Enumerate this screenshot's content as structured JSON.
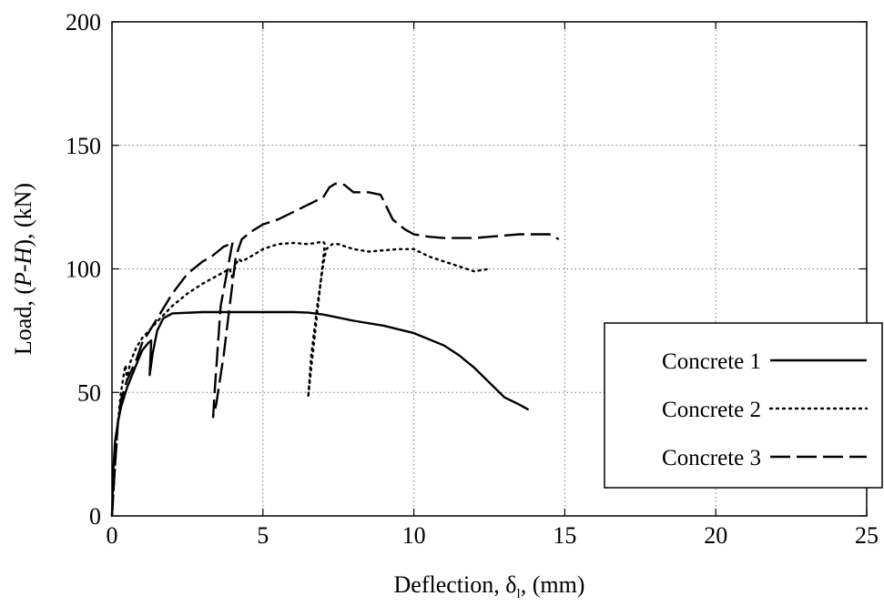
{
  "chart_data": {
    "type": "line",
    "title": "",
    "xlabel": "Deflection, δl, (mm)",
    "xlabel_parts": {
      "prefix": "Deflection, ",
      "symbol": "δ",
      "sub": "l",
      "suffix": ", (mm)"
    },
    "ylabel": "Load, (P-H), (kN)",
    "ylabel_parts": {
      "prefix": "Load, (",
      "italic": "P-H",
      "suffix": "), (kN)"
    },
    "xlim": [
      0,
      25
    ],
    "ylim": [
      0,
      200
    ],
    "xticks": [
      0,
      5,
      10,
      15,
      20,
      25
    ],
    "yticks": [
      0,
      50,
      100,
      150,
      200
    ],
    "grid": true,
    "legend_position": "bottom-right",
    "series": [
      {
        "name": "Concrete 1",
        "style": "solid",
        "color": "#000000",
        "x": [
          0,
          0.05,
          0.1,
          0.2,
          0.3,
          0.5,
          0.7,
          0.9,
          1.0,
          1.2,
          1.3,
          1.25,
          1.35,
          1.5,
          1.7,
          2.0,
          3.0,
          4.0,
          5.0,
          6.0,
          6.5,
          7.0,
          8.0,
          9.0,
          10.0,
          11.0,
          11.5,
          12.0,
          12.5,
          13.0,
          13.5,
          13.8
        ],
        "y": [
          0,
          20,
          30,
          38,
          44,
          52,
          58,
          64,
          67,
          70,
          71,
          57,
          66,
          75,
          80,
          82,
          82.5,
          82.5,
          82.5,
          82.5,
          82.3,
          81.5,
          79,
          77,
          74,
          69,
          65,
          60,
          54,
          48,
          45,
          43
        ]
      },
      {
        "name": "Concrete 2",
        "style": "dotted",
        "color": "#000000",
        "x": [
          0,
          0.1,
          0.2,
          0.3,
          0.4,
          0.45,
          0.5,
          0.6,
          0.8,
          1.0,
          1.3,
          1.6,
          2.0,
          2.5,
          3.0,
          3.3,
          3.6,
          3.9,
          4.0,
          4.1,
          4.2,
          4.3,
          4.6,
          5.0,
          5.5,
          6.0,
          6.5,
          7.0,
          7.05,
          6.6,
          6.5,
          6.6,
          6.8,
          7.0,
          7.1,
          7.3,
          7.5,
          8.0,
          8.5,
          9.0,
          9.5,
          10.0,
          10.5,
          11.0,
          11.5,
          12.0,
          12.5
        ],
        "y": [
          0,
          20,
          38,
          50,
          58,
          61,
          55,
          62,
          68,
          72,
          76,
          80,
          85,
          90,
          94,
          96,
          98,
          100,
          96,
          102,
          104,
          103,
          105,
          108,
          110,
          110.5,
          110,
          111,
          110,
          60,
          48,
          65,
          85,
          102,
          108,
          110,
          110,
          108,
          107,
          107.5,
          108,
          108,
          105,
          103,
          101,
          99,
          100
        ]
      },
      {
        "name": "Concrete 3",
        "style": "dashed",
        "color": "#000000",
        "x": [
          0,
          0.1,
          0.2,
          0.3,
          0.5,
          0.8,
          1.0,
          1.3,
          1.6,
          2.0,
          2.5,
          3.0,
          3.3,
          3.5,
          3.7,
          3.9,
          4.0,
          3.6,
          3.4,
          3.35,
          3.45,
          3.7,
          3.9,
          4.1,
          4.3,
          4.6,
          5.0,
          5.5,
          6.0,
          6.5,
          7.0,
          7.2,
          7.4,
          7.7,
          8.0,
          8.5,
          8.9,
          9.3,
          9.7,
          10.0,
          10.5,
          11.0,
          11.5,
          12.0,
          12.5,
          13.0,
          13.5,
          14.0,
          14.5,
          14.8
        ],
        "y": [
          0,
          20,
          38,
          47,
          55,
          63,
          70,
          76,
          82,
          90,
          98,
          103,
          105,
          107,
          109,
          110,
          111,
          85,
          50,
          40,
          45,
          65,
          85,
          105,
          112,
          115,
          118,
          120,
          123,
          126,
          129,
          133,
          134.5,
          134,
          131,
          131,
          130,
          120,
          116,
          114,
          113,
          112.5,
          112.5,
          112.5,
          113,
          113.5,
          114,
          114,
          114,
          112
        ]
      }
    ]
  }
}
